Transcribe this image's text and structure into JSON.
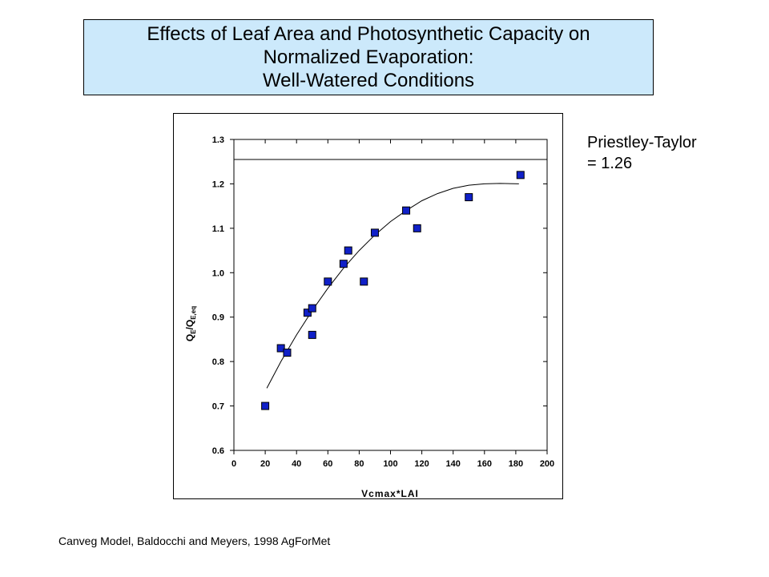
{
  "title": {
    "lines": [
      "Effects of Leaf Area and Photosynthetic Capacity on",
      "Normalized Evaporation:",
      "Well-Watered Conditions"
    ]
  },
  "annotation": {
    "line1": "Priestley-Taylor",
    "line2": "= 1.26"
  },
  "source_note": "Canveg Model, Baldocchi and Meyers, 1998 AgForMet",
  "chart_data": {
    "type": "scatter",
    "xlabel": "Vcmax*LAI",
    "ylabel": {
      "main": "Q",
      "sub1": "E",
      "slash": "/Q",
      "sub2": "E,eq"
    },
    "xlim": [
      0,
      200
    ],
    "ylim": [
      0.6,
      1.3
    ],
    "xticks": [
      0,
      20,
      40,
      60,
      80,
      100,
      120,
      140,
      160,
      180,
      200
    ],
    "yticks": [
      0.6,
      0.7,
      0.8,
      0.9,
      1.0,
      1.1,
      1.2,
      1.3
    ],
    "ytick_labels": [
      "0.6",
      "0.7",
      "0.8",
      "0.9",
      "1.0",
      "1.1",
      "1.2",
      "1.3"
    ],
    "points": [
      {
        "x": 20,
        "y": 0.7
      },
      {
        "x": 30,
        "y": 0.83
      },
      {
        "x": 34,
        "y": 0.82
      },
      {
        "x": 47,
        "y": 0.91
      },
      {
        "x": 50,
        "y": 0.92
      },
      {
        "x": 50,
        "y": 0.86
      },
      {
        "x": 60,
        "y": 0.98
      },
      {
        "x": 70,
        "y": 1.02
      },
      {
        "x": 73,
        "y": 1.05
      },
      {
        "x": 83,
        "y": 0.98
      },
      {
        "x": 90,
        "y": 1.09
      },
      {
        "x": 110,
        "y": 1.14
      },
      {
        "x": 117,
        "y": 1.1
      },
      {
        "x": 150,
        "y": 1.17
      },
      {
        "x": 183,
        "y": 1.22
      }
    ],
    "fit_curve": [
      {
        "x": 21,
        "y": 0.74
      },
      {
        "x": 30,
        "y": 0.8
      },
      {
        "x": 40,
        "y": 0.86
      },
      {
        "x": 50,
        "y": 0.915
      },
      {
        "x": 60,
        "y": 0.965
      },
      {
        "x": 70,
        "y": 1.01
      },
      {
        "x": 80,
        "y": 1.05
      },
      {
        "x": 90,
        "y": 1.085
      },
      {
        "x": 100,
        "y": 1.115
      },
      {
        "x": 110,
        "y": 1.14
      },
      {
        "x": 120,
        "y": 1.162
      },
      {
        "x": 130,
        "y": 1.178
      },
      {
        "x": 140,
        "y": 1.19
      },
      {
        "x": 150,
        "y": 1.197
      },
      {
        "x": 160,
        "y": 1.2
      },
      {
        "x": 170,
        "y": 1.201
      },
      {
        "x": 182,
        "y": 1.2
      }
    ],
    "reference_line": {
      "y": 1.255,
      "x_from": 0,
      "x_to": 200
    },
    "marker_color": "#1020c8",
    "grid": false,
    "legend": "none"
  }
}
